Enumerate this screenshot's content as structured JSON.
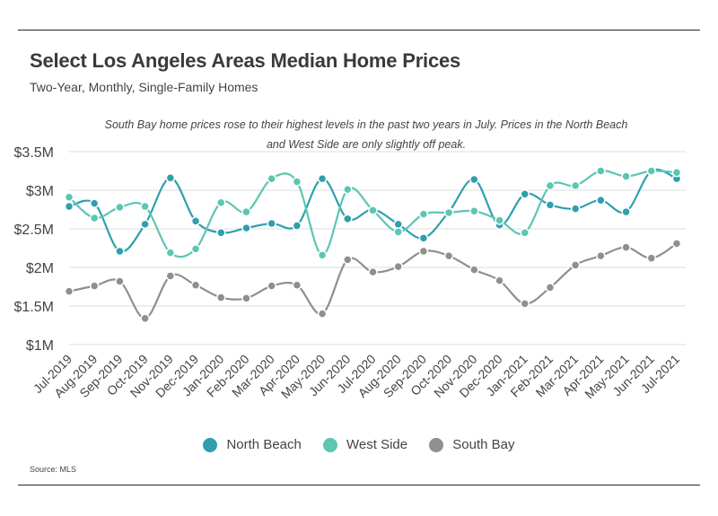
{
  "header": {
    "title": "Select Los Angeles Areas Median Home Prices",
    "subtitle": "Two-Year, Monthly, Single-Family Homes"
  },
  "annotation": {
    "line1": "South Bay home prices rose to their highest levels in the past two years in July. Prices in the North Beach",
    "line2": "and West Side are only slightly off peak."
  },
  "source": "Source:  MLS",
  "chart_data": {
    "type": "line",
    "ylabel": "",
    "xlabel": "",
    "ylim": [
      1.0,
      3.5
    ],
    "y_ticks": [
      "$1M",
      "$1.5M",
      "$2M",
      "$2.5M",
      "$3M",
      "$3.5M"
    ],
    "y_tick_values": [
      1.0,
      1.5,
      2.0,
      2.5,
      3.0,
      3.5
    ],
    "grid": true,
    "legend_position": "bottom",
    "categories": [
      "Jul-2019",
      "Aug-2019",
      "Sep-2019",
      "Oct-2019",
      "Nov-2019",
      "Dec-2019",
      "Jan-2020",
      "Feb-2020",
      "Mar-2020",
      "Apr-2020",
      "May-2020",
      "Jun-2020",
      "Jul-2020",
      "Aug-2020",
      "Sep-2020",
      "Oct-2020",
      "Nov-2020",
      "Dec-2020",
      "Jan-2021",
      "Feb-2021",
      "Mar-2021",
      "Apr-2021",
      "May-2021",
      "Jun-2021",
      "Jul-2021"
    ],
    "series": [
      {
        "name": "North Beach",
        "color": "#2f9fae",
        "values": [
          2.79,
          2.83,
          2.21,
          2.56,
          3.16,
          2.6,
          2.45,
          2.51,
          2.57,
          2.54,
          3.15,
          2.63,
          2.75,
          2.56,
          2.38,
          2.72,
          3.14,
          2.55,
          2.95,
          2.81,
          2.76,
          2.87,
          2.72,
          3.25,
          3.15
        ]
      },
      {
        "name": "West Side",
        "color": "#5bc6b2",
        "values": [
          2.91,
          2.64,
          2.78,
          2.79,
          2.19,
          2.24,
          2.84,
          2.72,
          3.15,
          3.11,
          2.16,
          3.01,
          2.74,
          2.46,
          2.69,
          2.71,
          2.73,
          2.61,
          2.45,
          3.06,
          3.06,
          3.25,
          3.18,
          3.25,
          3.23
        ]
      },
      {
        "name": "South Bay",
        "color": "#8f8f8f",
        "values": [
          1.69,
          1.76,
          1.82,
          1.34,
          1.89,
          1.77,
          1.61,
          1.6,
          1.76,
          1.77,
          1.4,
          2.1,
          1.94,
          2.01,
          2.21,
          2.15,
          1.97,
          1.83,
          1.53,
          1.74,
          2.03,
          2.15,
          2.26,
          2.12,
          2.31
        ]
      }
    ]
  }
}
